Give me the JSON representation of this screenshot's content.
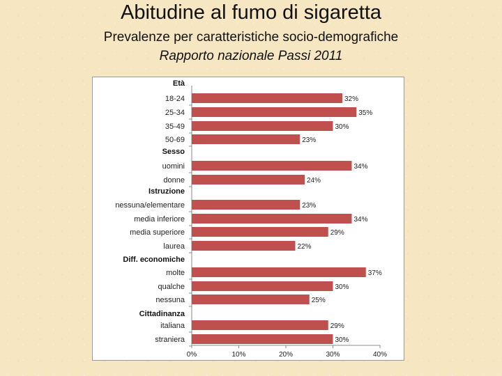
{
  "header": {
    "title": "Abitudine al fumo di sigaretta",
    "subtitle": "Prevalenze per caratteristiche socio-demografiche",
    "subtitle2": "Rapporto nazionale Passi 2011"
  },
  "colors": {
    "bar": "#c0504d",
    "axis": "#888888"
  },
  "chart_data": {
    "type": "bar",
    "orientation": "horizontal",
    "xlim": [
      0,
      40
    ],
    "x_ticks": [
      "0%",
      "10%",
      "20%",
      "30%",
      "40%"
    ],
    "grid": false,
    "groups": [
      {
        "name": "Età",
        "items": [
          {
            "label": "18-24",
            "value": 32,
            "display": "32%"
          },
          {
            "label": "25-34",
            "value": 35,
            "display": "35%"
          },
          {
            "label": "35-49",
            "value": 30,
            "display": "30%"
          },
          {
            "label": "50-69",
            "value": 23,
            "display": "23%"
          }
        ]
      },
      {
        "name": "Sesso",
        "items": [
          {
            "label": "uomini",
            "value": 34,
            "display": "34%"
          },
          {
            "label": "donne",
            "value": 24,
            "display": "24%"
          }
        ]
      },
      {
        "name": "Istruzione",
        "items": [
          {
            "label": "nessuna/elementare",
            "value": 23,
            "display": "23%"
          },
          {
            "label": "media inferiore",
            "value": 34,
            "display": "34%"
          },
          {
            "label": "media superiore",
            "value": 29,
            "display": "29%"
          },
          {
            "label": "laurea",
            "value": 22,
            "display": "22%"
          }
        ]
      },
      {
        "name": "Diff. economiche",
        "items": [
          {
            "label": "molte",
            "value": 37,
            "display": "37%"
          },
          {
            "label": "qualche",
            "value": 30,
            "display": "30%"
          },
          {
            "label": "nessuna",
            "value": 25,
            "display": "25%"
          }
        ]
      },
      {
        "name": "Cittadinanza",
        "items": [
          {
            "label": "italiana",
            "value": 29,
            "display": "29%"
          },
          {
            "label": "straniera",
            "value": 30,
            "display": "30%"
          }
        ]
      }
    ]
  }
}
